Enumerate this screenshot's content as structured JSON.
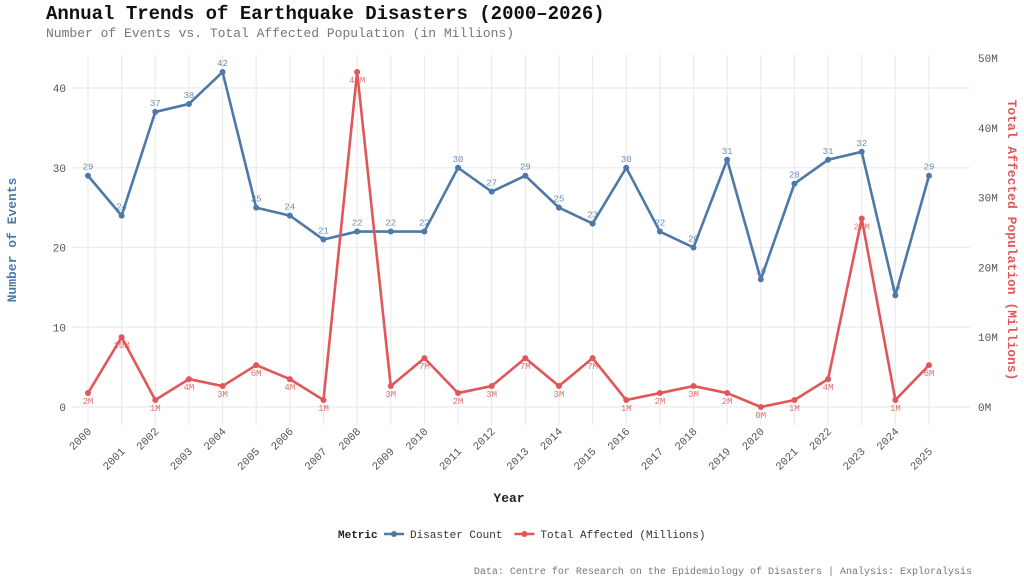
{
  "chart_data": {
    "type": "line",
    "title": "Annual Trends of Earthquake Disasters (2000–2026)",
    "subtitle": "Number of Events vs. Total Affected Population (in Millions)",
    "xlabel": "Year",
    "ylabel": "Number of Events",
    "y2label": "Total Affected Population (Millions)",
    "caption": "Data: Centre for Research on the Epidemiology of Disasters | Analysis: Exploralysis",
    "x": [
      2000,
      2001,
      2002,
      2003,
      2004,
      2005,
      2006,
      2007,
      2008,
      2009,
      2010,
      2011,
      2012,
      2013,
      2014,
      2015,
      2016,
      2017,
      2018,
      2019,
      2020,
      2021,
      2022,
      2023,
      2024,
      2025
    ],
    "ylim": [
      0,
      44
    ],
    "yticks": [
      0,
      10,
      20,
      30,
      40
    ],
    "y2lim": [
      0,
      50
    ],
    "y2ticks": [
      "0M",
      "10M",
      "20M",
      "30M",
      "40M",
      "50M"
    ],
    "legend_title": "Metric",
    "legend_position": "bottom",
    "grid": true,
    "series": [
      {
        "name": "Disaster Count",
        "color": "#4E79A7",
        "axis": "left",
        "values": [
          29,
          24,
          37,
          38,
          42,
          25,
          24,
          21,
          22,
          22,
          22,
          30,
          27,
          29,
          25,
          23,
          30,
          22,
          20,
          31,
          16,
          28,
          31,
          32,
          14,
          29
        ]
      },
      {
        "name": "Total Affected (Millions)",
        "color": "#E15759",
        "axis": "right",
        "values": [
          2,
          10,
          1,
          4,
          3,
          6,
          4,
          1,
          48,
          3,
          7,
          2,
          3,
          7,
          3,
          7,
          1,
          2,
          3,
          2,
          0,
          1,
          4,
          27,
          1,
          6
        ]
      }
    ]
  }
}
